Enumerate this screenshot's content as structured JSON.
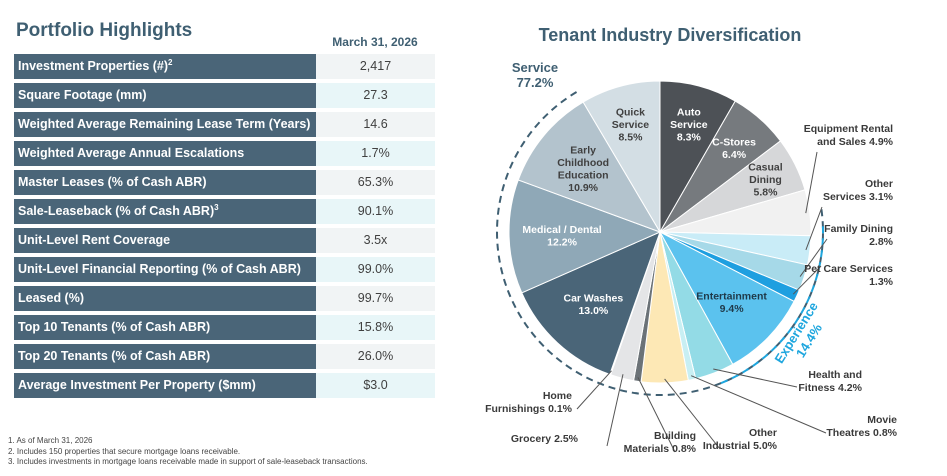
{
  "portfolio": {
    "title": "Portfolio Highlights",
    "date_header": "March 31, 2026",
    "rows": [
      {
        "label": "Investment Properties (#)",
        "sup": "2",
        "value": "2,417"
      },
      {
        "label": "Square Footage (mm)",
        "sup": "",
        "value": "27.3"
      },
      {
        "label": "Weighted Average Remaining Lease Term (Years)",
        "sup": "",
        "value": "14.6"
      },
      {
        "label": "Weighted Average Annual Escalations",
        "sup": "",
        "value": "1.7%"
      },
      {
        "label": "Master Leases (% of Cash ABR)",
        "sup": "",
        "value": "65.3%"
      },
      {
        "label": "Sale-Leaseback (% of Cash ABR)",
        "sup": "3",
        "value": "90.1%"
      },
      {
        "label": "Unit-Level Rent Coverage",
        "sup": "",
        "value": "3.5x"
      },
      {
        "label": "Unit-Level Financial Reporting (% of Cash ABR)",
        "sup": "",
        "value": "99.0%"
      },
      {
        "label": "Leased (%)",
        "sup": "",
        "value": "99.7%"
      },
      {
        "label": "Top 10 Tenants (% of Cash ABR)",
        "sup": "",
        "value": "15.8%"
      },
      {
        "label": "Top 20 Tenants (% of Cash ABR)",
        "sup": "",
        "value": "26.0%"
      },
      {
        "label": "Average Investment Per Property ($mm)",
        "sup": "",
        "value": "$3.0"
      }
    ]
  },
  "footnotes": [
    "1. As of March 31, 2026",
    "2. Includes 150 properties that secure mortgage loans receivable.",
    "3. Includes investments in mortgage loans receivable made in support of sale-leaseback transactions."
  ],
  "chart_data": {
    "type": "pie",
    "title": "Tenant Industry Diversification",
    "slices": [
      {
        "name": "Auto Service",
        "value": 8.3,
        "color": "#4d5156"
      },
      {
        "name": "C-Stores",
        "value": 6.4,
        "color": "#767a7e"
      },
      {
        "name": "Casual Dining",
        "value": 5.8,
        "color": "#d6d7d9"
      },
      {
        "name": "Equipment Rental and Sales",
        "value": 4.9,
        "color": "#f1f1f1"
      },
      {
        "name": "Other Services",
        "value": 3.1,
        "color": "#c9ecf7"
      },
      {
        "name": "Family Dining",
        "value": 2.8,
        "color": "#a6d9e8"
      },
      {
        "name": "Pet Care Services",
        "value": 1.3,
        "color": "#1e9fe0"
      },
      {
        "name": "Entertainment",
        "value": 9.4,
        "color": "#5bc2ee"
      },
      {
        "name": "Health and Fitness",
        "value": 4.2,
        "color": "#93dbe6"
      },
      {
        "name": "Movie Theatres",
        "value": 0.8,
        "color": "#c8eff3"
      },
      {
        "name": "Other Industrial",
        "value": 5.0,
        "color": "#fde8b5"
      },
      {
        "name": "Building Materials",
        "value": 0.8,
        "color": "#6b7277"
      },
      {
        "name": "Grocery",
        "value": 2.5,
        "color": "#e4e5e7"
      },
      {
        "name": "Home Furnishings",
        "value": 0.1,
        "color": "#9aa0a6"
      },
      {
        "name": "Car Washes",
        "value": 13.0,
        "color": "#4a6578"
      },
      {
        "name": "Medical / Dental",
        "value": 12.2,
        "color": "#8fa8b7"
      },
      {
        "name": "Early Childhood Education",
        "value": 10.9,
        "color": "#b3c3cd"
      },
      {
        "name": "Quick Service",
        "value": 8.5,
        "color": "#d3dee4"
      }
    ],
    "inside_labels": [
      {
        "lines": [
          "Auto",
          "Service",
          "8.3%"
        ],
        "color": "#ffffff"
      },
      {
        "lines": [
          "C-Stores",
          "6.4%"
        ],
        "color": "#ffffff"
      },
      {
        "lines": [
          "Casual",
          "Dining",
          "5.8%"
        ],
        "color": "#404040"
      },
      {
        "lines": [
          "Entertainment",
          "9.4%"
        ],
        "color": "#1f3a4a"
      },
      {
        "lines": [
          "Car Washes",
          "13.0%"
        ],
        "color": "#ffffff"
      },
      {
        "lines": [
          "Medical  / Dental",
          "12.2%"
        ],
        "color": "#ffffff"
      },
      {
        "lines": [
          "Early",
          "Childhood",
          "Education",
          "10.9%"
        ],
        "color": "#404040"
      },
      {
        "lines": [
          "Quick",
          "Service",
          "8.5%"
        ],
        "color": "#404040"
      }
    ],
    "outside_labels": [
      {
        "lines": [
          "Equipment Rental",
          "and Sales 4.9%"
        ]
      },
      {
        "lines": [
          "Other",
          "Services 3.1%"
        ]
      },
      {
        "lines": [
          "Family Dining",
          "2.8%"
        ]
      },
      {
        "lines": [
          "Pet Care Services",
          "1.3%"
        ]
      },
      {
        "lines": [
          "Health and",
          "Fitness 4.2%"
        ]
      },
      {
        "lines": [
          "Movie",
          "Theatres 0.8%"
        ]
      },
      {
        "lines": [
          "Other",
          "Industrial 5.0%"
        ]
      },
      {
        "lines": [
          "Building",
          "Materials 0.8%"
        ]
      },
      {
        "lines": [
          "Grocery 2.5%"
        ]
      },
      {
        "lines": [
          "Home",
          "Furnishings 0.1%"
        ]
      }
    ],
    "groups": [
      {
        "lines": [
          "Service",
          "77.2%"
        ],
        "color": "#3f5f72"
      },
      {
        "lines": [
          "Experience",
          "14.4%"
        ],
        "color": "#1ea6de"
      }
    ]
  }
}
